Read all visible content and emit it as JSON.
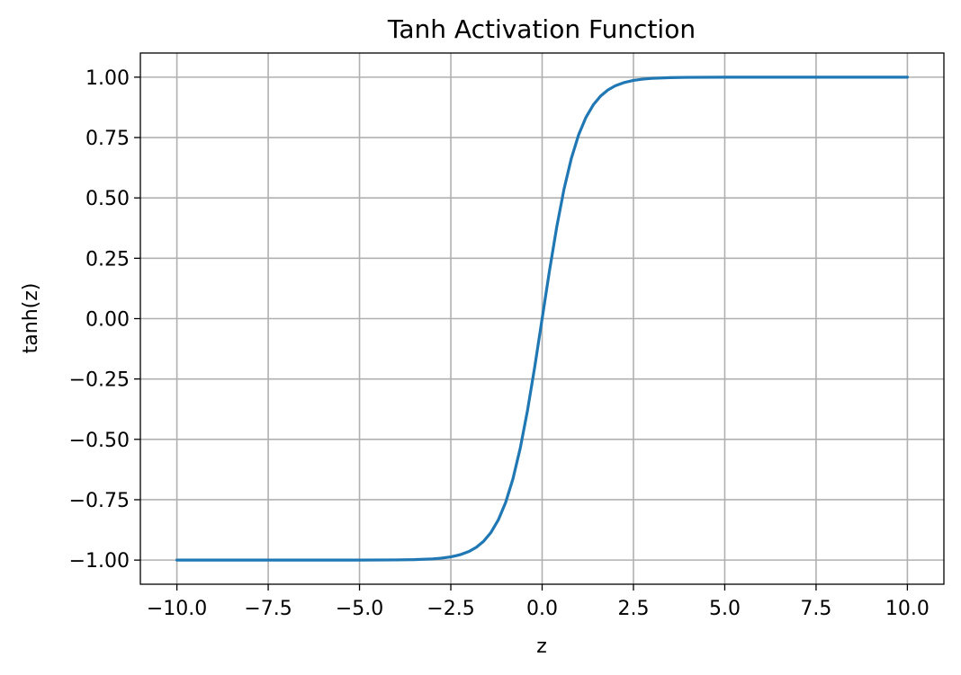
{
  "chart_data": {
    "type": "line",
    "title": "Tanh Activation Function",
    "xlabel": "z",
    "ylabel": "tanh(z)",
    "xlim": [
      -11.0,
      11.0
    ],
    "ylim": [
      -1.1,
      1.1
    ],
    "x_ticks": [
      -10.0,
      -7.5,
      -5.0,
      -2.5,
      0.0,
      2.5,
      5.0,
      7.5,
      10.0
    ],
    "x_tick_labels": [
      "−10.0",
      "−7.5",
      "−5.0",
      "−2.5",
      "0.0",
      "2.5",
      "5.0",
      "7.5",
      "10.0"
    ],
    "y_ticks": [
      -1.0,
      -0.75,
      -0.5,
      -0.25,
      0.0,
      0.25,
      0.5,
      0.75,
      1.0
    ],
    "y_tick_labels": [
      "−1.00",
      "−0.75",
      "−0.50",
      "−0.25",
      "0.00",
      "0.25",
      "0.50",
      "0.75",
      "1.00"
    ],
    "grid": true,
    "colors": {
      "line": "#1f77b4",
      "grid": "#b0b0b0",
      "axes": "#000000"
    },
    "series": [
      {
        "x": [
          -10.0,
          -9.0,
          -8.0,
          -7.0,
          -6.0,
          -5.0,
          -4.0,
          -3.5,
          -3.0,
          -2.75,
          -2.5,
          -2.25,
          -2.0,
          -1.8,
          -1.6,
          -1.4,
          -1.2,
          -1.0,
          -0.8,
          -0.6,
          -0.4,
          -0.2,
          0.0,
          0.2,
          0.4,
          0.6,
          0.8,
          1.0,
          1.2,
          1.4,
          1.6,
          1.8,
          2.0,
          2.25,
          2.5,
          2.75,
          3.0,
          3.5,
          4.0,
          5.0,
          6.0,
          7.0,
          8.0,
          9.0,
          10.0
        ],
        "y": [
          -1.0,
          -1.0,
          -1.0,
          -1.0,
          -1.0,
          -0.9999,
          -0.9993,
          -0.9982,
          -0.9951,
          -0.9918,
          -0.9866,
          -0.978,
          -0.964,
          -0.9468,
          -0.9217,
          -0.8854,
          -0.8337,
          -0.7616,
          -0.664,
          -0.537,
          -0.3799,
          -0.1974,
          0.0,
          0.1974,
          0.3799,
          0.537,
          0.664,
          0.7616,
          0.8337,
          0.8854,
          0.9217,
          0.9468,
          0.964,
          0.978,
          0.9866,
          0.9918,
          0.9951,
          0.9982,
          0.9993,
          0.9999,
          1.0,
          1.0,
          1.0,
          1.0,
          1.0
        ]
      }
    ]
  }
}
